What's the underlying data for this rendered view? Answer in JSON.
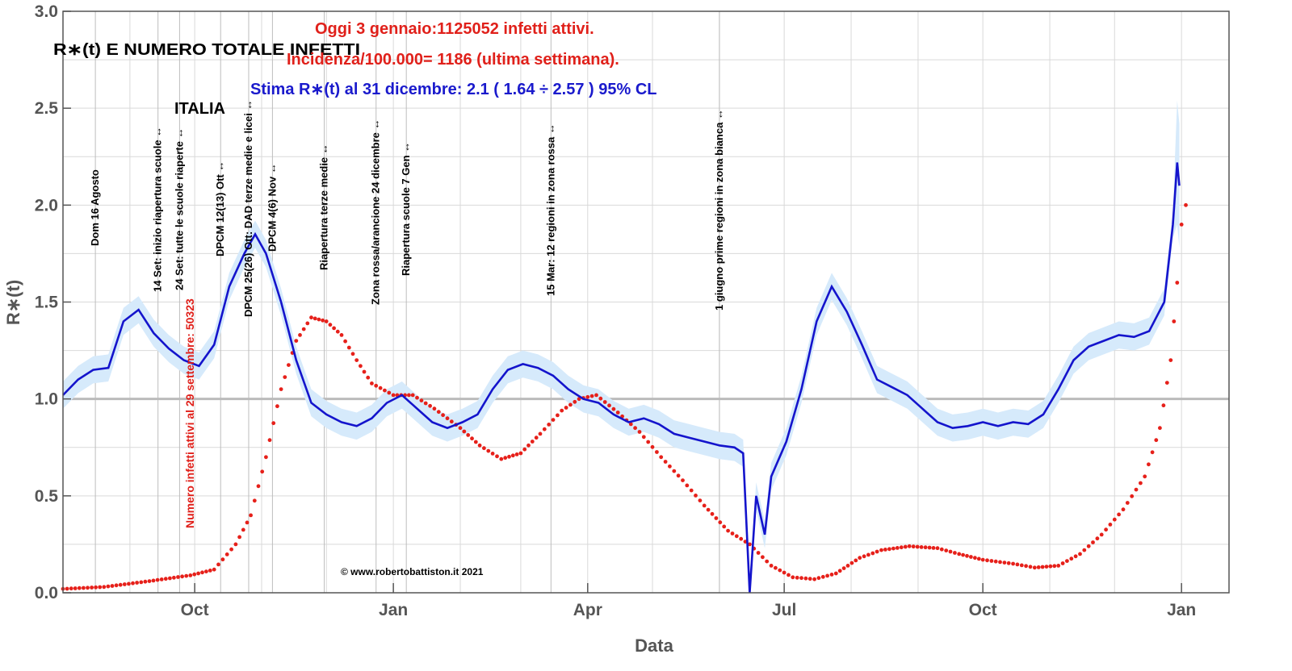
{
  "chart_data": {
    "type": "line",
    "title_lines": [
      "Oggi 3  gennaio:1125052 infetti attivi.",
      "Incidenza/100.000= 1186 (ultima settimana).",
      "Stima R∗(t) al 31 dicembre: 2.1 ( 1.64 ÷ 2.57 ) 95% CL"
    ],
    "subtitle": "R∗(t) E NUMERO TOTALE INFETTI",
    "region": "ITALIA",
    "xlabel": "Data",
    "ylabel": "R∗(t)",
    "ylim": [
      0,
      3
    ],
    "yticks": [
      "0.0",
      "0.5",
      "1.0",
      "1.5",
      "2.0",
      "2.5",
      "3.0"
    ],
    "xticks": [
      {
        "label": "Oct",
        "date": "2020-10-01"
      },
      {
        "label": "Jan",
        "date": "2021-01-01"
      },
      {
        "label": "Apr",
        "date": "2021-04-01"
      },
      {
        "label": "Jul",
        "date": "2021-07-01"
      },
      {
        "label": "Oct",
        "date": "2021-10-01"
      },
      {
        "label": "Jan",
        "date": "2022-01-01"
      }
    ],
    "xlim": [
      "2020-08-01",
      "2022-01-23"
    ],
    "reference_line_y": 1.0,
    "secondary_scale_note": "Numero infetti attivi al 29 settembre: 50323",
    "copyright": "© www.robertobattiston.it 2021",
    "colors": {
      "rt_line": "#1414cc",
      "rt_band": "#d6eafb",
      "infected": "#e6201a",
      "grid": "#d9d9d9",
      "ref_line": "#bbbbbb"
    },
    "annotations": [
      {
        "date": "2020-08-16",
        "text": "Dom 16 Agosto"
      },
      {
        "date": "2020-09-14",
        "text": "14 Set: inizio riapertura scuole ↔"
      },
      {
        "date": "2020-09-24",
        "text": "24 Set: tutte le scuole riaperte ↔"
      },
      {
        "date": "2020-10-13",
        "text": "DPCM 12(13) Ott ↔"
      },
      {
        "date": "2020-10-26",
        "text": "DPCM 25(26) Ott: DAD terze medie e licei ↔"
      },
      {
        "date": "2020-11-06",
        "text": "DPCM 4(6) Nov ↔"
      },
      {
        "date": "2020-11-30",
        "text": "Riapertura terze medie ↔"
      },
      {
        "date": "2020-12-24",
        "text": "Zona rossa/arancione 24 dicembre ↔"
      },
      {
        "date": "2021-01-07",
        "text": "Riapertura scuole 7 Gen ↔"
      },
      {
        "date": "2021-03-15",
        "text": "15 Mar: 12 regioni in zona rossa ↔"
      },
      {
        "date": "2021-06-01",
        "text": "1 giugno prime regioni in zona bianca ↔"
      }
    ],
    "series": [
      {
        "name": "R∗(t)",
        "kind": "line",
        "points": [
          [
            "2020-08-01",
            1.02
          ],
          [
            "2020-08-08",
            1.1
          ],
          [
            "2020-08-15",
            1.15
          ],
          [
            "2020-08-22",
            1.16
          ],
          [
            "2020-08-29",
            1.4
          ],
          [
            "2020-09-05",
            1.46
          ],
          [
            "2020-09-12",
            1.34
          ],
          [
            "2020-09-19",
            1.26
          ],
          [
            "2020-09-26",
            1.2
          ],
          [
            "2020-10-03",
            1.17
          ],
          [
            "2020-10-10",
            1.28
          ],
          [
            "2020-10-17",
            1.58
          ],
          [
            "2020-10-24",
            1.75
          ],
          [
            "2020-10-29",
            1.85
          ],
          [
            "2020-11-03",
            1.75
          ],
          [
            "2020-11-10",
            1.5
          ],
          [
            "2020-11-17",
            1.2
          ],
          [
            "2020-11-24",
            0.98
          ],
          [
            "2020-12-01",
            0.92
          ],
          [
            "2020-12-08",
            0.88
          ],
          [
            "2020-12-15",
            0.86
          ],
          [
            "2020-12-22",
            0.9
          ],
          [
            "2020-12-29",
            0.98
          ],
          [
            "2021-01-05",
            1.02
          ],
          [
            "2021-01-12",
            0.95
          ],
          [
            "2021-01-19",
            0.88
          ],
          [
            "2021-01-26",
            0.85
          ],
          [
            "2021-02-02",
            0.88
          ],
          [
            "2021-02-09",
            0.92
          ],
          [
            "2021-02-16",
            1.05
          ],
          [
            "2021-02-23",
            1.15
          ],
          [
            "2021-03-02",
            1.18
          ],
          [
            "2021-03-09",
            1.16
          ],
          [
            "2021-03-16",
            1.12
          ],
          [
            "2021-03-23",
            1.05
          ],
          [
            "2021-03-30",
            1.0
          ],
          [
            "2021-04-06",
            0.98
          ],
          [
            "2021-04-13",
            0.92
          ],
          [
            "2021-04-20",
            0.88
          ],
          [
            "2021-04-27",
            0.9
          ],
          [
            "2021-05-04",
            0.87
          ],
          [
            "2021-05-11",
            0.82
          ],
          [
            "2021-05-18",
            0.8
          ],
          [
            "2021-05-25",
            0.78
          ],
          [
            "2021-06-01",
            0.76
          ],
          [
            "2021-06-08",
            0.75
          ],
          [
            "2021-06-12",
            0.72
          ],
          [
            "2021-06-15",
            0.0
          ],
          [
            "2021-06-18",
            0.5
          ],
          [
            "2021-06-22",
            0.3
          ],
          [
            "2021-06-25",
            0.6
          ],
          [
            "2021-07-02",
            0.78
          ],
          [
            "2021-07-09",
            1.05
          ],
          [
            "2021-07-16",
            1.4
          ],
          [
            "2021-07-23",
            1.58
          ],
          [
            "2021-07-30",
            1.45
          ],
          [
            "2021-08-06",
            1.28
          ],
          [
            "2021-08-13",
            1.1
          ],
          [
            "2021-08-20",
            1.06
          ],
          [
            "2021-08-27",
            1.02
          ],
          [
            "2021-09-03",
            0.95
          ],
          [
            "2021-09-10",
            0.88
          ],
          [
            "2021-09-17",
            0.85
          ],
          [
            "2021-09-24",
            0.86
          ],
          [
            "2021-10-01",
            0.88
          ],
          [
            "2021-10-08",
            0.86
          ],
          [
            "2021-10-15",
            0.88
          ],
          [
            "2021-10-22",
            0.87
          ],
          [
            "2021-10-29",
            0.92
          ],
          [
            "2021-11-05",
            1.05
          ],
          [
            "2021-11-12",
            1.2
          ],
          [
            "2021-11-19",
            1.27
          ],
          [
            "2021-11-26",
            1.3
          ],
          [
            "2021-12-03",
            1.33
          ],
          [
            "2021-12-10",
            1.32
          ],
          [
            "2021-12-17",
            1.35
          ],
          [
            "2021-12-24",
            1.5
          ],
          [
            "2021-12-28",
            1.9
          ],
          [
            "2021-12-30",
            2.22
          ],
          [
            "2021-12-31",
            2.1
          ]
        ]
      },
      {
        "name": "Numero infetti attivi",
        "kind": "dots",
        "scale_note": "plotted on R∗(t) axis units",
        "points": [
          [
            "2020-08-01",
            0.02
          ],
          [
            "2020-08-20",
            0.03
          ],
          [
            "2020-09-10",
            0.06
          ],
          [
            "2020-09-29",
            0.09
          ],
          [
            "2020-10-10",
            0.12
          ],
          [
            "2020-10-20",
            0.25
          ],
          [
            "2020-10-27",
            0.4
          ],
          [
            "2020-11-03",
            0.7
          ],
          [
            "2020-11-10",
            1.05
          ],
          [
            "2020-11-17",
            1.3
          ],
          [
            "2020-11-24",
            1.42
          ],
          [
            "2020-12-01",
            1.4
          ],
          [
            "2020-12-08",
            1.33
          ],
          [
            "2020-12-15",
            1.2
          ],
          [
            "2020-12-22",
            1.08
          ],
          [
            "2021-01-01",
            1.02
          ],
          [
            "2021-01-10",
            1.02
          ],
          [
            "2021-01-20",
            0.95
          ],
          [
            "2021-02-01",
            0.85
          ],
          [
            "2021-02-10",
            0.76
          ],
          [
            "2021-02-20",
            0.69
          ],
          [
            "2021-03-01",
            0.72
          ],
          [
            "2021-03-10",
            0.82
          ],
          [
            "2021-03-20",
            0.94
          ],
          [
            "2021-03-28",
            1.0
          ],
          [
            "2021-04-05",
            1.02
          ],
          [
            "2021-04-15",
            0.93
          ],
          [
            "2021-04-25",
            0.83
          ],
          [
            "2021-05-05",
            0.7
          ],
          [
            "2021-05-15",
            0.58
          ],
          [
            "2021-05-25",
            0.45
          ],
          [
            "2021-06-05",
            0.32
          ],
          [
            "2021-06-15",
            0.25
          ],
          [
            "2021-06-25",
            0.14
          ],
          [
            "2021-07-05",
            0.08
          ],
          [
            "2021-07-15",
            0.07
          ],
          [
            "2021-07-25",
            0.1
          ],
          [
            "2021-08-05",
            0.18
          ],
          [
            "2021-08-15",
            0.22
          ],
          [
            "2021-08-28",
            0.24
          ],
          [
            "2021-09-10",
            0.23
          ],
          [
            "2021-09-20",
            0.2
          ],
          [
            "2021-10-01",
            0.17
          ],
          [
            "2021-10-15",
            0.15
          ],
          [
            "2021-10-25",
            0.13
          ],
          [
            "2021-11-05",
            0.14
          ],
          [
            "2021-11-15",
            0.2
          ],
          [
            "2021-11-25",
            0.3
          ],
          [
            "2021-12-05",
            0.43
          ],
          [
            "2021-12-15",
            0.6
          ],
          [
            "2021-12-22",
            0.85
          ],
          [
            "2021-12-27",
            1.2
          ],
          [
            "2021-12-30",
            1.6
          ],
          [
            "2022-01-01",
            1.9
          ],
          [
            "2022-01-03",
            2.0
          ]
        ]
      }
    ]
  }
}
